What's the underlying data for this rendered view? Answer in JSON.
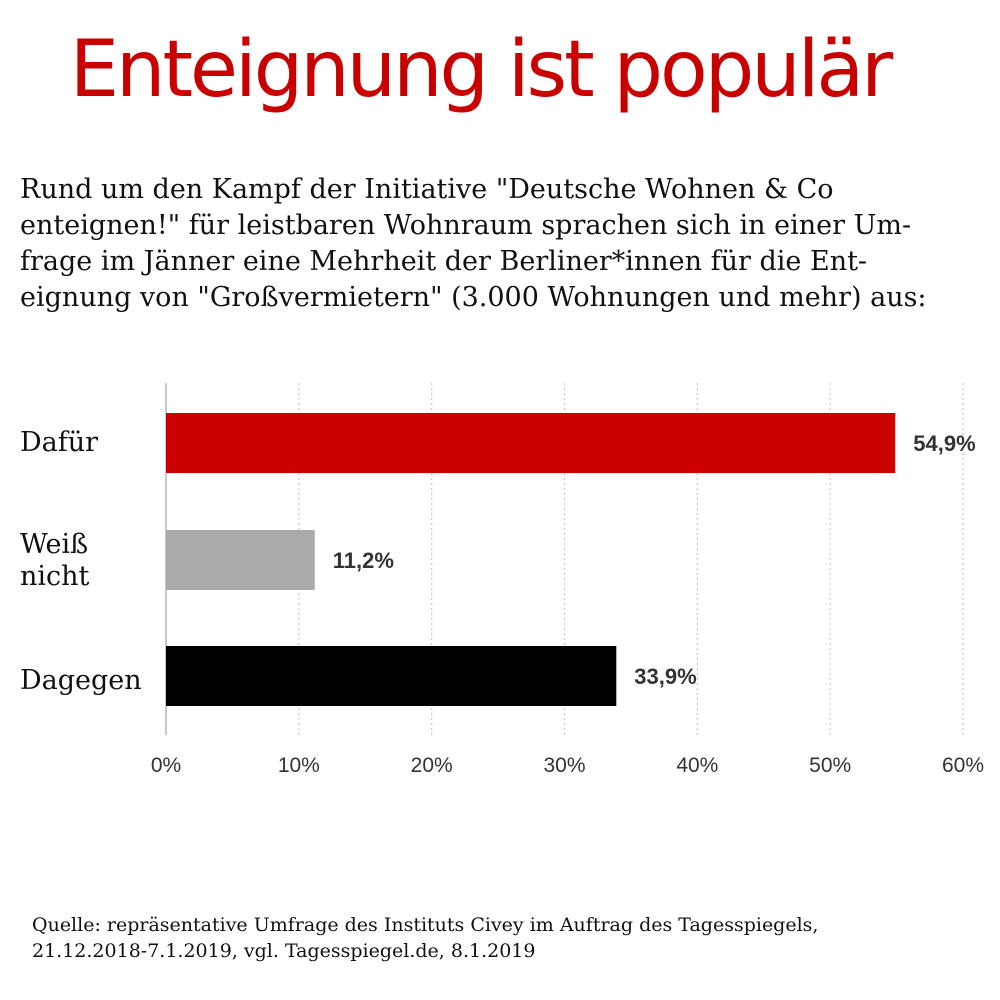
{
  "title": "Enteignung ist populär",
  "intro": "Rund um den Kampf der Initiative \"Deutsche Wohnen & Co\nenteignen!\" für leistbaren Wohnraum sprachen sich in einer Um-\nfrage im Jänner eine Mehrheit der Berliner*innen für die Ent-\neignung von \"Großvermietern\" (3.000 Wohnungen und mehr) aus:",
  "source": "Quelle: repräsentative Umfrage des Instituts Civey im Auftrag des Tagesspiegels,\n21.12.2018-7.1.2019, vgl. Tagesspiegel.de, 8.1.2019",
  "colors": {
    "title": "#c90000",
    "dafuer": "#cc0000",
    "weiss_nicht": "#aaaaaa",
    "dagegen": "#000000"
  },
  "chart_data": {
    "type": "bar",
    "orientation": "horizontal",
    "categories": [
      "Dafür",
      "Weiß\nnicht",
      "Dagegen"
    ],
    "values": [
      54.9,
      11.2,
      33.9
    ],
    "value_labels": [
      "54,9%",
      "11,2%",
      "33,9%"
    ],
    "bar_colors": [
      "#cc0000",
      "#aaaaaa",
      "#000000"
    ],
    "xlim": [
      0,
      60
    ],
    "x_ticks": [
      0,
      10,
      20,
      30,
      40,
      50,
      60
    ],
    "x_tick_labels": [
      "0%",
      "10%",
      "20%",
      "30%",
      "40%",
      "50%",
      "60%"
    ],
    "grid": true
  }
}
